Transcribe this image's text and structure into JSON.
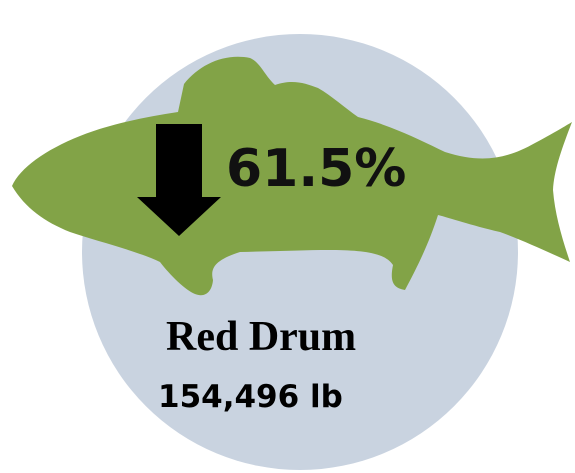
{
  "species": {
    "name": "Red Drum",
    "weight": "154,496 lb"
  },
  "change": {
    "percent": "61.5%",
    "direction": "down",
    "icon": "down-arrow-icon"
  },
  "colors": {
    "circle": "#c9d3e0",
    "fish": "#82a347",
    "arrow": "#000000",
    "text": "#000000"
  }
}
